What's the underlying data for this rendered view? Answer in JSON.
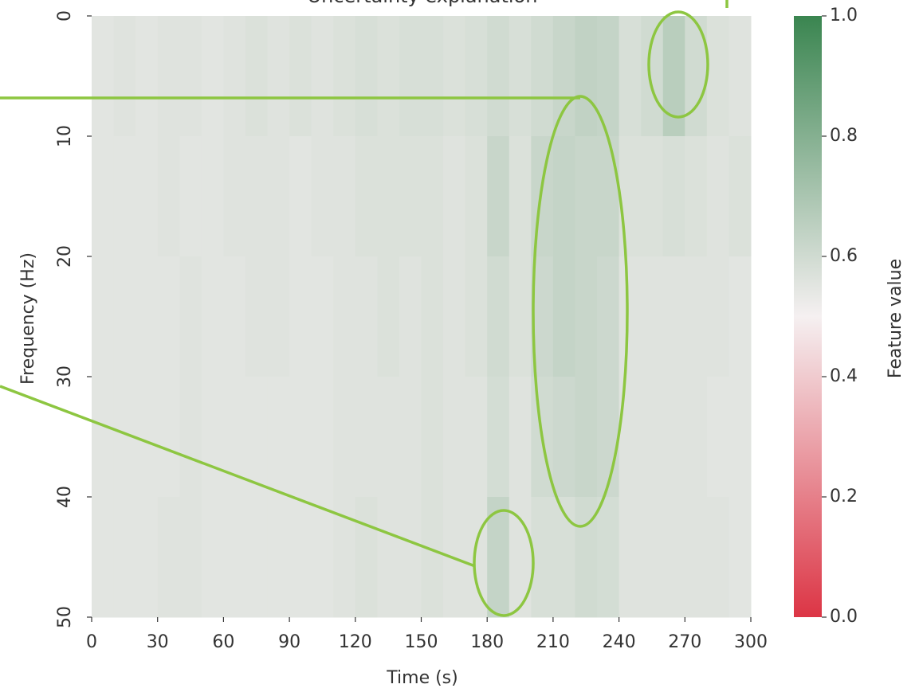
{
  "chart_data": {
    "type": "heatmap",
    "title": "Uncertainty explanation",
    "xlabel": "Time (s)",
    "ylabel": "Frequency (Hz)",
    "colorbar_label": "Feature value",
    "xlim": [
      0,
      300
    ],
    "ylim": [
      0,
      50
    ],
    "xticks": [
      0,
      30,
      60,
      90,
      120,
      150,
      180,
      210,
      240,
      270,
      300
    ],
    "yticks": [
      0,
      10,
      20,
      30,
      40,
      50
    ],
    "clim": [
      0,
      1
    ],
    "cticks": [
      {
        "value": 0,
        "label": "0.0"
      },
      {
        "value": 0.2,
        "label": "0.2"
      },
      {
        "value": 0.4,
        "label": "0.4"
      },
      {
        "value": 0.6,
        "label": "0.6"
      },
      {
        "value": 0.8,
        "label": "0.8"
      },
      {
        "value": 1,
        "label": "1.0"
      }
    ],
    "colormap": [
      "#dc3545",
      "#f5f0f1",
      "#3a8550"
    ],
    "values": [
      [
        0.55,
        0.56,
        0.55,
        0.56,
        0.56,
        0.55,
        0.56,
        0.57,
        0.56,
        0.57,
        0.56,
        0.57,
        0.58,
        0.57,
        0.58,
        0.58,
        0.57,
        0.58,
        0.6,
        0.58,
        0.6,
        0.62,
        0.64,
        0.63,
        0.58,
        0.6,
        0.66,
        0.6,
        0.57,
        0.56
      ],
      [
        0.55,
        0.55,
        0.55,
        0.56,
        0.55,
        0.55,
        0.56,
        0.56,
        0.56,
        0.55,
        0.56,
        0.56,
        0.57,
        0.57,
        0.57,
        0.57,
        0.56,
        0.57,
        0.62,
        0.57,
        0.62,
        0.63,
        0.62,
        0.62,
        0.57,
        0.57,
        0.58,
        0.57,
        0.56,
        0.57
      ],
      [
        0.55,
        0.55,
        0.55,
        0.55,
        0.56,
        0.55,
        0.55,
        0.56,
        0.56,
        0.55,
        0.55,
        0.56,
        0.56,
        0.57,
        0.56,
        0.57,
        0.56,
        0.57,
        0.6,
        0.57,
        0.61,
        0.63,
        0.62,
        0.61,
        0.56,
        0.56,
        0.56,
        0.56,
        0.56,
        0.55
      ],
      [
        0.55,
        0.55,
        0.55,
        0.55,
        0.56,
        0.55,
        0.55,
        0.55,
        0.55,
        0.55,
        0.55,
        0.56,
        0.56,
        0.56,
        0.56,
        0.57,
        0.56,
        0.56,
        0.59,
        0.56,
        0.6,
        0.61,
        0.62,
        0.61,
        0.56,
        0.56,
        0.56,
        0.56,
        0.55,
        0.55
      ],
      [
        0.55,
        0.55,
        0.55,
        0.56,
        0.56,
        0.55,
        0.55,
        0.55,
        0.55,
        0.55,
        0.55,
        0.56,
        0.57,
        0.56,
        0.56,
        0.57,
        0.56,
        0.56,
        0.63,
        0.56,
        0.58,
        0.58,
        0.6,
        0.59,
        0.56,
        0.56,
        0.56,
        0.56,
        0.56,
        0.55
      ]
    ]
  }
}
